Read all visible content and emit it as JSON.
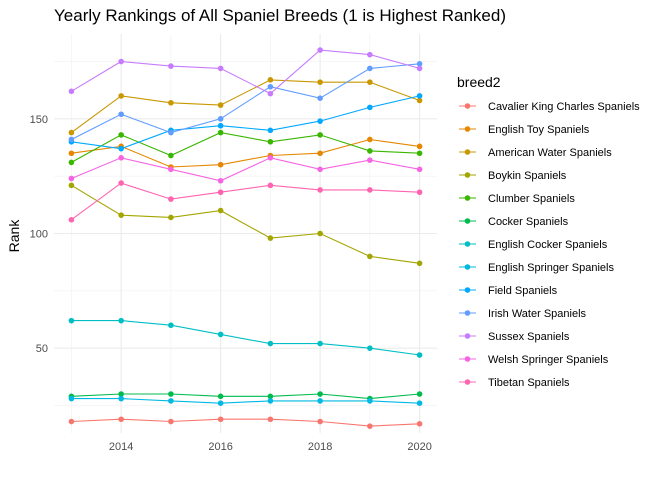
{
  "chart_data": {
    "type": "line",
    "title": "Yearly Rankings of All Spaniel Breeds (1 is Highest Ranked)",
    "xlabel": "",
    "ylabel": "Rank",
    "x": [
      2013,
      2014,
      2015,
      2016,
      2017,
      2018,
      2019,
      2020
    ],
    "x_ticks": [
      "2014",
      "2016",
      "2018",
      "2020"
    ],
    "y_ticks": [
      "50",
      "100",
      "150"
    ],
    "xlim": [
      2012.65,
      2020.35
    ],
    "ylim": [
      13,
      187
    ],
    "grid": true,
    "legend": {
      "title": "breed2",
      "position": "right"
    },
    "series": [
      {
        "name": "Cavalier King Charles Spaniels",
        "color": "#F8766D",
        "values": [
          18,
          19,
          18,
          19,
          19,
          18,
          16,
          17
        ]
      },
      {
        "name": "English Toy Spaniels",
        "color": "#E58700",
        "values": [
          135,
          138,
          129,
          130,
          134,
          135,
          141,
          138
        ]
      },
      {
        "name": "American Water Spaniels",
        "color": "#C99800",
        "values": [
          144,
          160,
          157,
          156,
          167,
          166,
          166,
          158
        ]
      },
      {
        "name": "Boykin Spaniels",
        "color": "#A3A500",
        "values": [
          121,
          108,
          107,
          110,
          98,
          100,
          90,
          87
        ]
      },
      {
        "name": "Clumber Spaniels",
        "color": "#39B600",
        "values": [
          131,
          143,
          134,
          144,
          140,
          143,
          136,
          135
        ]
      },
      {
        "name": "Cocker Spaniels",
        "color": "#00BB4E",
        "values": [
          29,
          30,
          30,
          29,
          29,
          30,
          28,
          30
        ]
      },
      {
        "name": "English Cocker Spaniels",
        "color": "#00BFC4",
        "values": [
          62,
          62,
          60,
          56,
          52,
          52,
          50,
          47
        ]
      },
      {
        "name": "English Springer Spaniels",
        "color": "#00B9E3",
        "values": [
          28,
          28,
          27,
          26,
          27,
          27,
          27,
          26
        ]
      },
      {
        "name": "Field Spaniels",
        "color": "#00A9FF",
        "values": [
          140,
          137,
          145,
          147,
          145,
          149,
          155,
          160
        ]
      },
      {
        "name": "Irish Water Spaniels",
        "color": "#619CFF",
        "values": [
          141,
          152,
          144,
          150,
          164,
          159,
          172,
          174
        ]
      },
      {
        "name": "Sussex Spaniels",
        "color": "#C77CFF",
        "values": [
          162,
          175,
          173,
          172,
          161,
          180,
          178,
          172
        ]
      },
      {
        "name": "Welsh Springer Spaniels",
        "color": "#F564E3",
        "values": [
          124,
          133,
          128,
          123,
          133,
          128,
          132,
          128
        ]
      },
      {
        "name": "Tibetan Spaniels",
        "color": "#FF64B0",
        "values": [
          106,
          122,
          115,
          118,
          121,
          119,
          119,
          118
        ]
      }
    ]
  }
}
